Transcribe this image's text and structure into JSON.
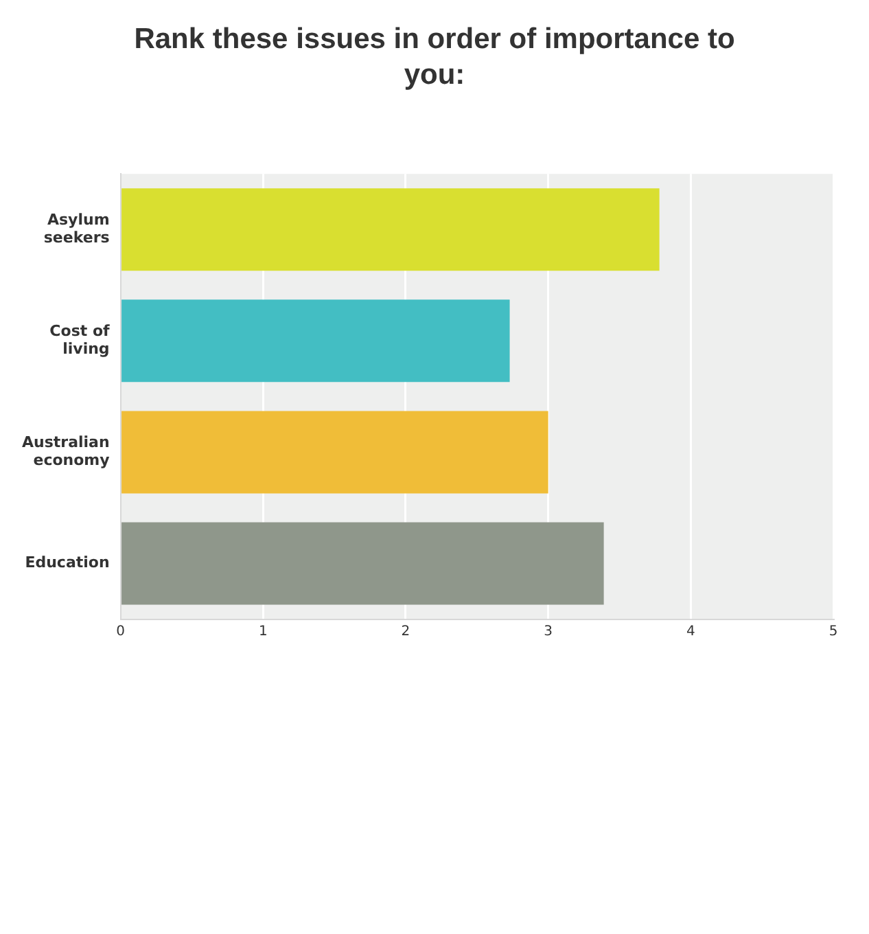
{
  "chart_data": {
    "type": "bar",
    "orientation": "horizontal",
    "title": "Rank these issues in order of importance to you:",
    "categories": [
      "Asylum seekers",
      "Cost of living",
      "Australian economy",
      "Education"
    ],
    "values": [
      3.78,
      2.73,
      3.0,
      3.39
    ],
    "colors": [
      "#d9df30",
      "#43bec3",
      "#f0bd38",
      "#8f978b"
    ],
    "xlim": [
      0,
      5
    ],
    "xticks": [
      0,
      1,
      2,
      3,
      4,
      5
    ],
    "grid": "x",
    "legend": false
  }
}
